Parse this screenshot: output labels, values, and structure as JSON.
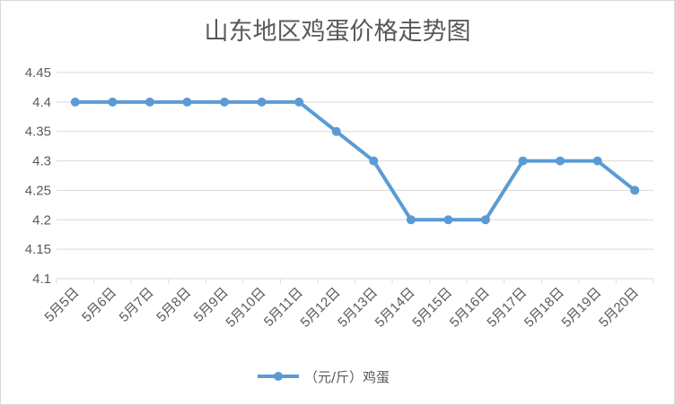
{
  "chart_data": {
    "type": "line",
    "title": "山东地区鸡蛋价格走势图",
    "xlabel": "",
    "ylabel": "",
    "categories": [
      "5月5日",
      "5月6日",
      "5月7日",
      "5月8日",
      "5月9日",
      "5月10日",
      "5月11日",
      "5月12日",
      "5月13日",
      "5月14日",
      "5月15日",
      "5月16日",
      "5月17日",
      "5月18日",
      "5月19日",
      "5月20日"
    ],
    "series": [
      {
        "name": "（元/斤）鸡蛋",
        "values": [
          4.4,
          4.4,
          4.4,
          4.4,
          4.4,
          4.4,
          4.4,
          4.35,
          4.3,
          4.2,
          4.2,
          4.2,
          4.3,
          4.3,
          4.3,
          4.25
        ]
      }
    ],
    "ylim": [
      4.1,
      4.45
    ],
    "yticks": [
      "4.1",
      "4.15",
      "4.2",
      "4.25",
      "4.3",
      "4.35",
      "4.4",
      "4.45"
    ],
    "grid": true,
    "legend_position": "bottom",
    "colors": {
      "series": "#5b9bd5",
      "grid": "#d9d9d9",
      "text": "#595959"
    }
  }
}
